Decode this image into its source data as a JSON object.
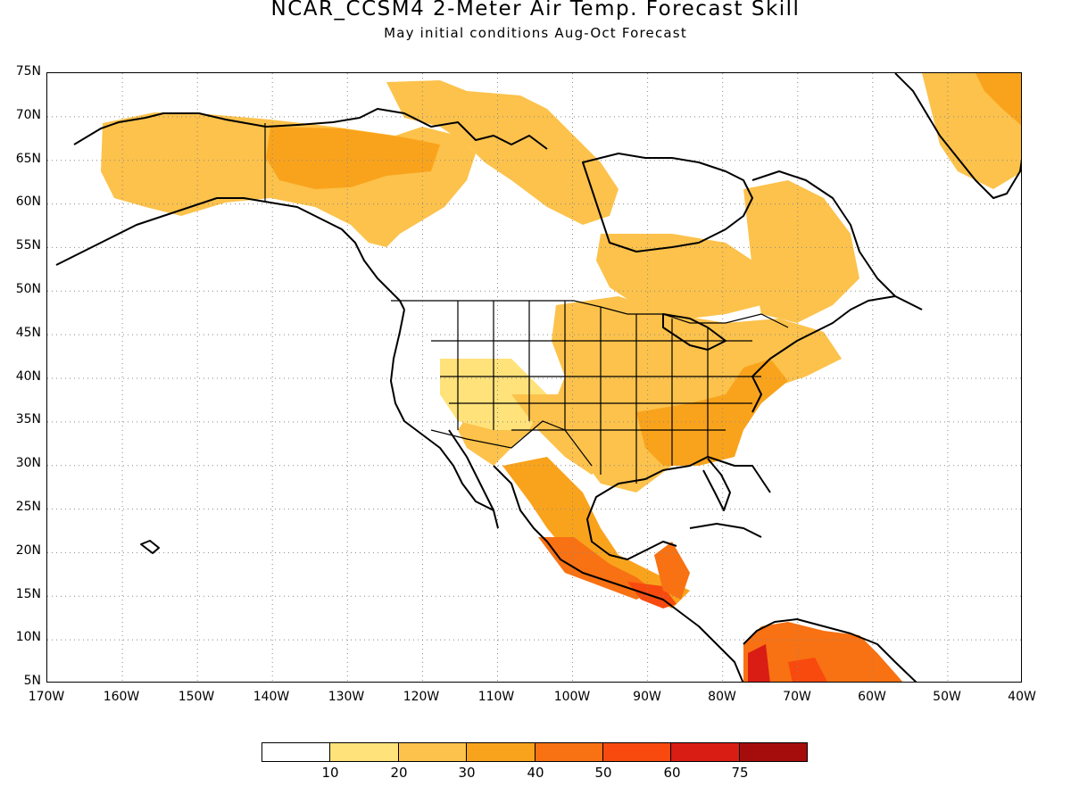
{
  "title": "NCAR_CCSM4 2-Meter Air Temp. Forecast Skill",
  "subtitle": "May initial conditions  Aug-Oct Forecast",
  "lat_labels": [
    "75N",
    "70N",
    "65N",
    "60N",
    "55N",
    "50N",
    "45N",
    "40N",
    "35N",
    "30N",
    "25N",
    "20N",
    "15N",
    "10N",
    "5N"
  ],
  "lon_labels": [
    "170W",
    "160W",
    "150W",
    "140W",
    "130W",
    "120W",
    "110W",
    "100W",
    "90W",
    "80W",
    "70W",
    "60W",
    "50W",
    "40W"
  ],
  "colorbar": {
    "colors": [
      "#ffffff",
      "#ffe27a",
      "#fcc24b",
      "#f9a31c",
      "#f87113",
      "#f84a0e",
      "#d91d14",
      "#a50d0d"
    ],
    "labels": [
      "10",
      "20",
      "30",
      "40",
      "50",
      "60",
      "75"
    ]
  },
  "map": {
    "lon_range": [
      -170,
      -40
    ],
    "lat_range": [
      5,
      75
    ],
    "gridlines": "dotted"
  }
}
